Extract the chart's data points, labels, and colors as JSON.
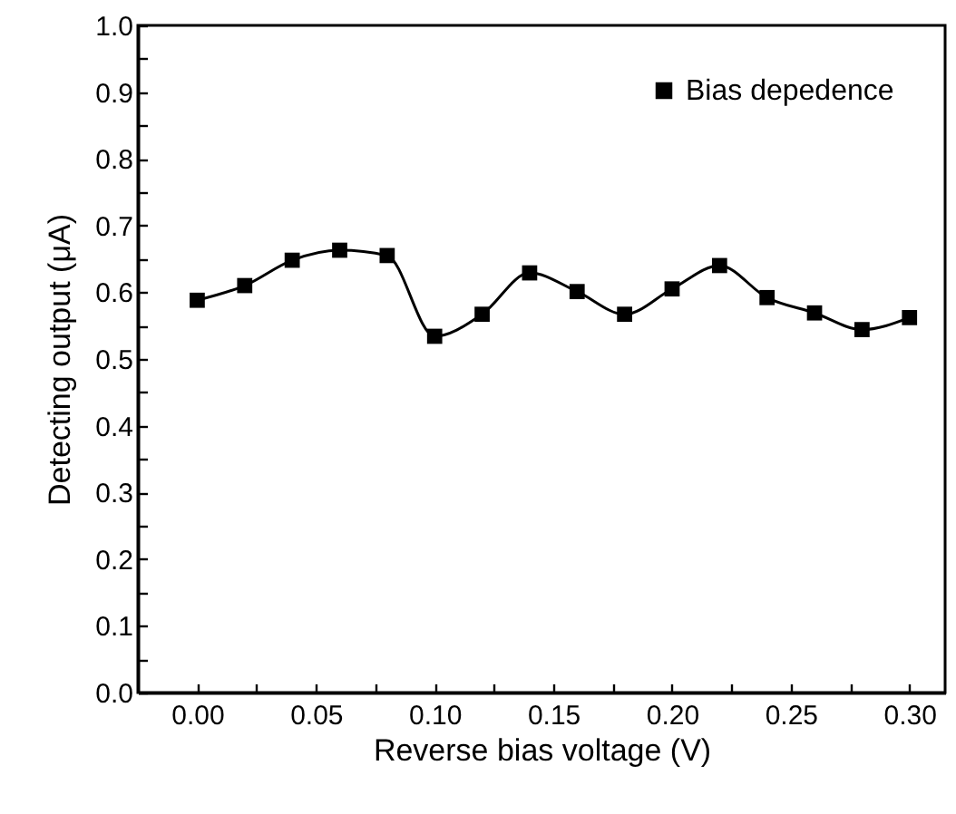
{
  "chart_data": {
    "type": "line",
    "xlabel": "Reverse bias voltage (V)",
    "ylabel": "Detecting output (μA)",
    "x": [
      0,
      0.02,
      0.04,
      0.06,
      0.08,
      0.1,
      0.12,
      0.14,
      0.16,
      0.18,
      0.2,
      0.22,
      0.24,
      0.26,
      0.28,
      0.3
    ],
    "series": [
      {
        "name": "Bias depedence",
        "color": "#000000",
        "values": [
          0.588,
          0.61,
          0.648,
          0.663,
          0.655,
          0.534,
          0.567,
          0.629,
          0.601,
          0.567,
          0.605,
          0.64,
          0.592,
          0.569,
          0.544,
          0.562
        ]
      }
    ],
    "xlim": [
      -0.025,
      0.315
    ],
    "xticks": [
      {
        "value": 0,
        "label": "0.00"
      },
      {
        "value": 0.025,
        "label": null
      },
      {
        "value": 0.05,
        "label": "0.05"
      },
      {
        "value": 0.075,
        "label": null
      },
      {
        "value": 0.1,
        "label": "0.10"
      },
      {
        "value": 0.125,
        "label": null
      },
      {
        "value": 0.15,
        "label": "0.15"
      },
      {
        "value": 0.175,
        "label": null
      },
      {
        "value": 0.2,
        "label": "0.20"
      },
      {
        "value": 0.225,
        "label": null
      },
      {
        "value": 0.25,
        "label": "0.25"
      },
      {
        "value": 0.275,
        "label": null
      },
      {
        "value": 0.3,
        "label": "0.30"
      }
    ],
    "ylim": [
      0,
      1
    ],
    "yticks": [
      {
        "value": 0,
        "label": "0.0"
      },
      {
        "value": 0.05,
        "label": null
      },
      {
        "value": 0.1,
        "label": "0.1"
      },
      {
        "value": 0.15,
        "label": null
      },
      {
        "value": 0.2,
        "label": "0.2"
      },
      {
        "value": 0.25,
        "label": null
      },
      {
        "value": 0.3,
        "label": "0.3"
      },
      {
        "value": 0.35,
        "label": null
      },
      {
        "value": 0.4,
        "label": "0.4"
      },
      {
        "value": 0.45,
        "label": null
      },
      {
        "value": 0.5,
        "label": "0.5"
      },
      {
        "value": 0.55,
        "label": null
      },
      {
        "value": 0.6,
        "label": "0.6"
      },
      {
        "value": 0.65,
        "label": null
      },
      {
        "value": 0.7,
        "label": "0.7"
      },
      {
        "value": 0.75,
        "label": null
      },
      {
        "value": 0.8,
        "label": "0.8"
      },
      {
        "value": 0.85,
        "label": null
      },
      {
        "value": 0.9,
        "label": "0.9"
      },
      {
        "value": 0.95,
        "label": null
      },
      {
        "value": 1,
        "label": "1.0"
      }
    ],
    "grid": false,
    "legend": "top right",
    "marker": "square",
    "line_style": "solid"
  }
}
